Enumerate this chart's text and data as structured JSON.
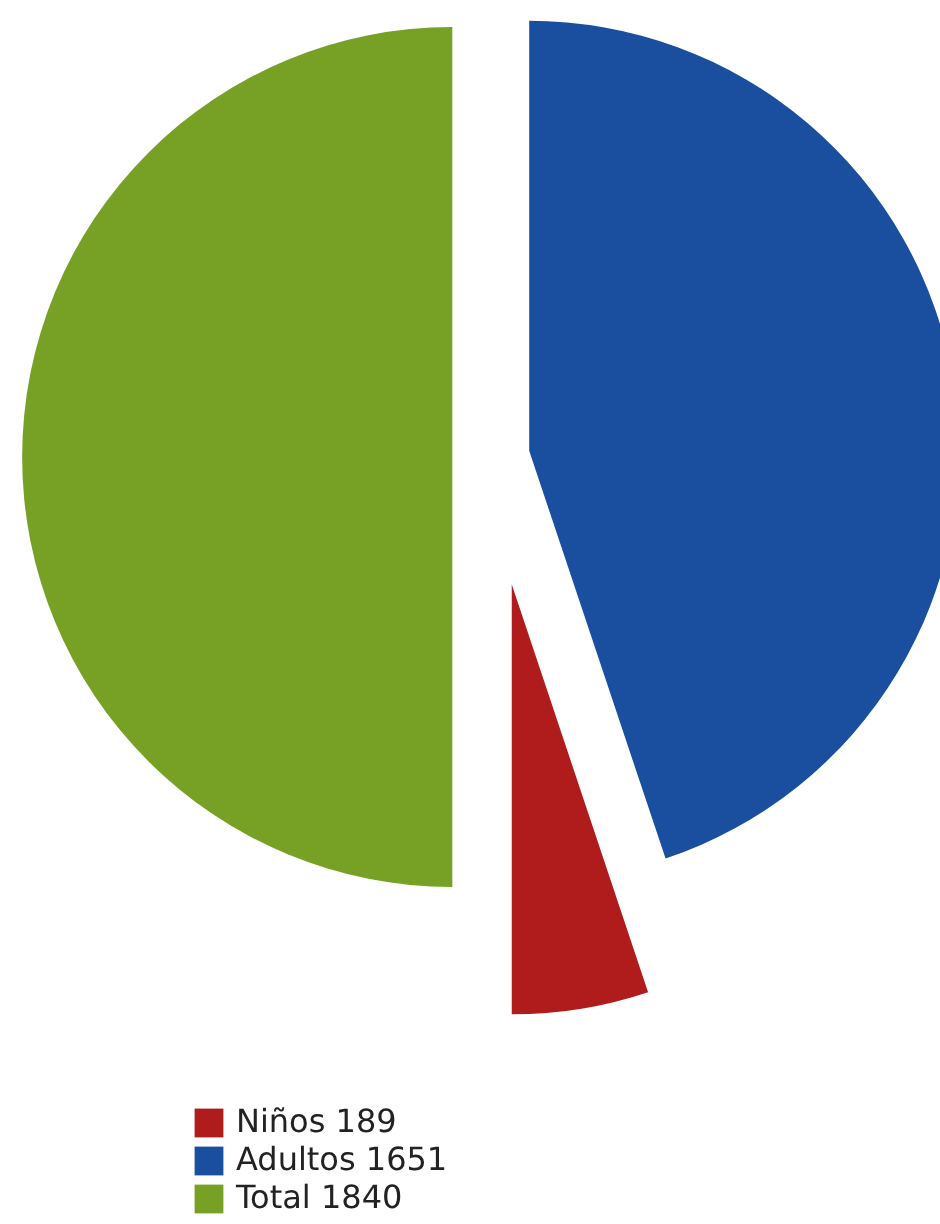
{
  "chart_data": {
    "type": "pie",
    "categories": [
      "Niños 189",
      "Adultos 1651",
      "Total 1840"
    ],
    "values": [
      189,
      1651,
      1840
    ],
    "colors": [
      "#b01c1c",
      "#1a4fa0",
      "#77a125"
    ],
    "legend": "bottom"
  }
}
